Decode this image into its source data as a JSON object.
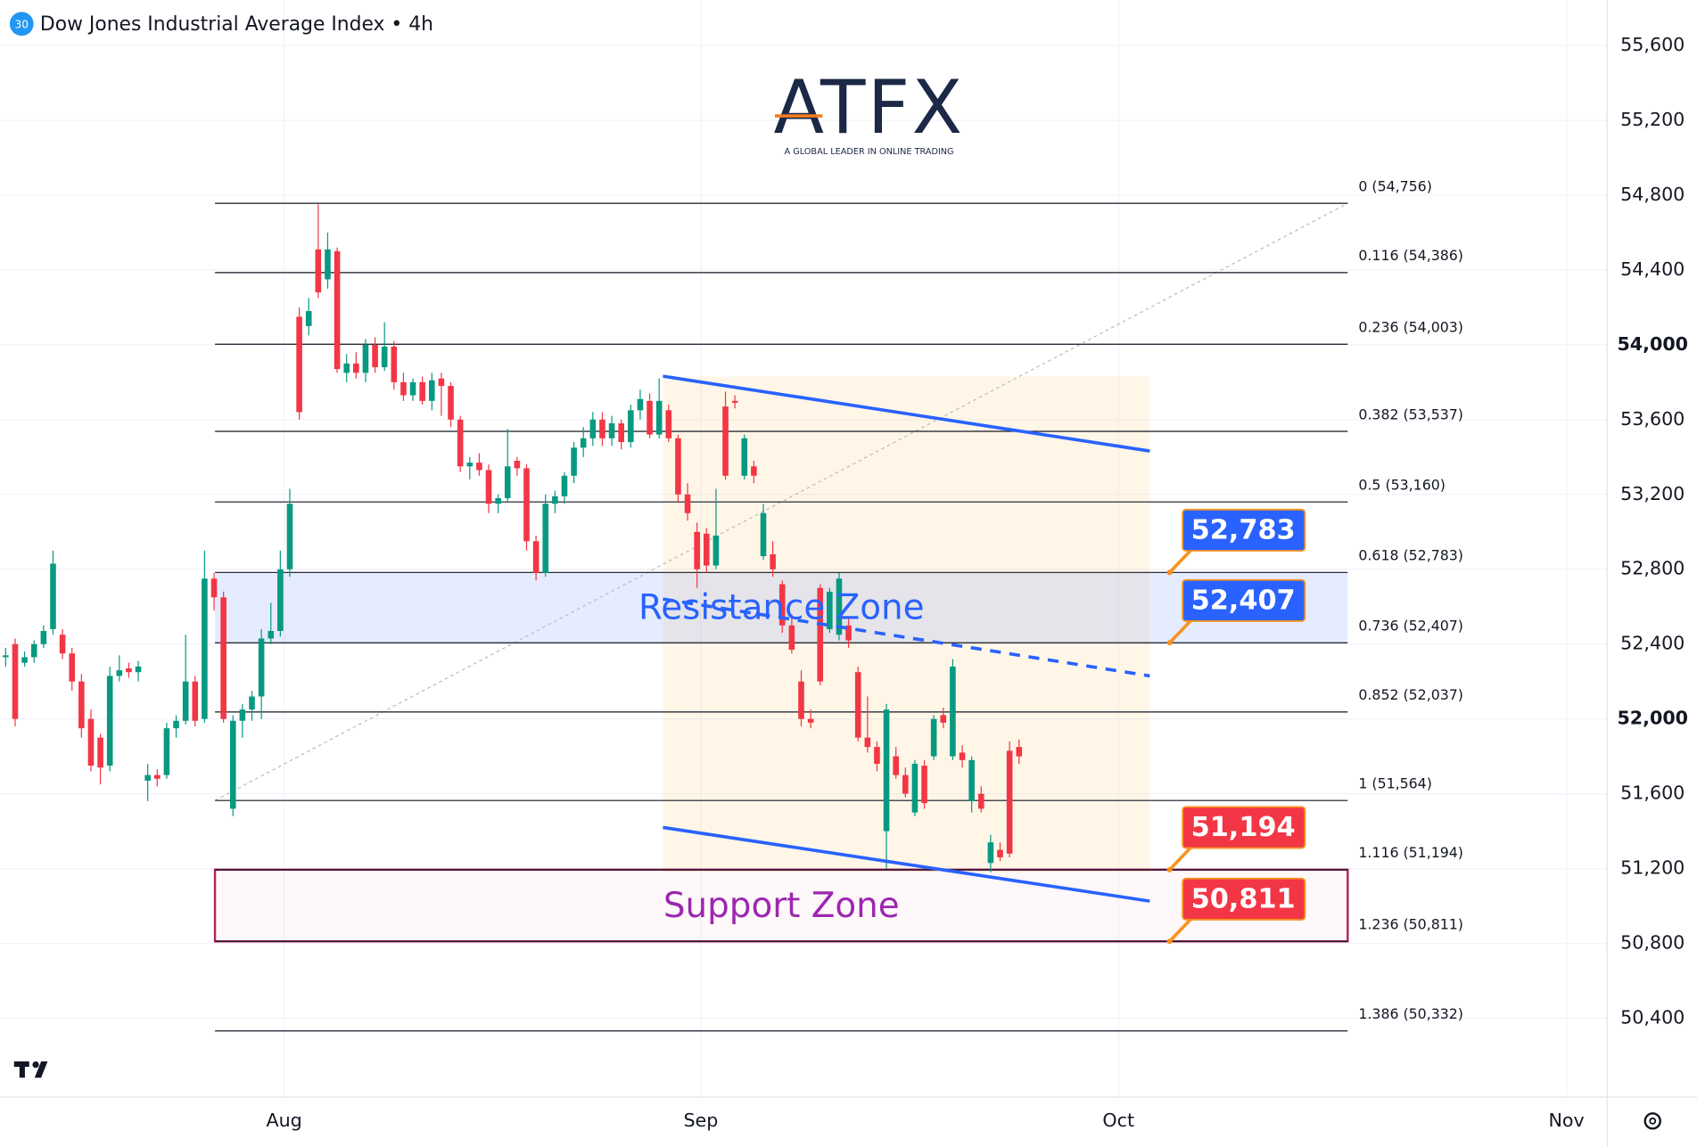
{
  "header": {
    "badge": "30",
    "title": "Dow Jones Industrial Average Index • 4h"
  },
  "logo": {
    "brand": "ATFX",
    "tagline": "A GLOBAL LEADER IN ONLINE TRADING"
  },
  "chart_data": {
    "type": "candlestick",
    "up_color": "#089981",
    "down_color": "#f23645",
    "ylim": [
      49978,
      55843
    ],
    "yticks": [
      {
        "value": 50400,
        "label": "50,400"
      },
      {
        "value": 50800,
        "label": "50,800"
      },
      {
        "value": 51200,
        "label": "51,200"
      },
      {
        "value": 51600,
        "label": "51,600"
      },
      {
        "value": 52000,
        "label": "52,000"
      },
      {
        "value": 52400,
        "label": "52,400"
      },
      {
        "value": 52800,
        "label": "52,800"
      },
      {
        "value": 53200,
        "label": "53,200"
      },
      {
        "value": 53600,
        "label": "53,600"
      },
      {
        "value": 54000,
        "label": "54,000"
      },
      {
        "value": 54400,
        "label": "54,400"
      },
      {
        "value": 54800,
        "label": "54,800"
      },
      {
        "value": 55200,
        "label": "55,200"
      },
      {
        "value": 55600,
        "label": "55,600"
      }
    ],
    "bold_yticks": [
      52000,
      54000
    ],
    "xlim": [
      -0.6,
      169.1
    ],
    "xticks": [
      {
        "value": 29.4,
        "label": "Aug"
      },
      {
        "value": 73.4,
        "label": "Sep"
      },
      {
        "value": 117.5,
        "label": "Oct"
      },
      {
        "value": 164.8,
        "label": "Nov"
      }
    ],
    "ohlc": [
      [
        52330,
        52380,
        52280,
        52340
      ],
      [
        52400,
        52430,
        51960,
        52000
      ],
      [
        52300,
        52360,
        52280,
        52330
      ],
      [
        52330,
        52420,
        52300,
        52400
      ],
      [
        52400,
        52500,
        52380,
        52470
      ],
      [
        52480,
        52900,
        52450,
        52830
      ],
      [
        52450,
        52480,
        52320,
        52350
      ],
      [
        52350,
        52380,
        52150,
        52200
      ],
      [
        52200,
        52240,
        51900,
        51950
      ],
      [
        52000,
        52050,
        51720,
        51750
      ],
      [
        51900,
        51920,
        51650,
        51740
      ],
      [
        51750,
        52280,
        51720,
        52230
      ],
      [
        52230,
        52340,
        52200,
        52260
      ],
      [
        52270,
        52300,
        52220,
        52250
      ],
      [
        52250,
        52310,
        52200,
        52280
      ],
      [
        51670,
        51760,
        51560,
        51700
      ],
      [
        51700,
        51730,
        51640,
        51680
      ],
      [
        51700,
        51980,
        51680,
        51950
      ],
      [
        51950,
        52020,
        51900,
        51990
      ],
      [
        51990,
        52450,
        51970,
        52200
      ],
      [
        52200,
        52230,
        51960,
        51990
      ],
      [
        52000,
        52900,
        51980,
        52750
      ],
      [
        52750,
        52780,
        52580,
        52650
      ],
      [
        52650,
        52680,
        51980,
        52000
      ],
      [
        51520,
        52020,
        51480,
        51990
      ],
      [
        51990,
        52080,
        51900,
        52050
      ],
      [
        52050,
        52150,
        51990,
        52120
      ],
      [
        52120,
        52480,
        52000,
        52430
      ],
      [
        52430,
        52620,
        52400,
        52470
      ],
      [
        52470,
        52900,
        52440,
        52800
      ],
      [
        52800,
        53230,
        52760,
        53150
      ],
      [
        54150,
        54200,
        53600,
        53640
      ],
      [
        54100,
        54250,
        54050,
        54180
      ],
      [
        54510,
        54750,
        54250,
        54280
      ],
      [
        54350,
        54600,
        54300,
        54510
      ],
      [
        54500,
        54520,
        53850,
        53870
      ],
      [
        53850,
        53950,
        53800,
        53900
      ],
      [
        53900,
        53960,
        53820,
        53850
      ],
      [
        53850,
        54030,
        53800,
        54000
      ],
      [
        54000,
        54040,
        53850,
        53880
      ],
      [
        53880,
        54120,
        53860,
        53990
      ],
      [
        53990,
        54020,
        53760,
        53800
      ],
      [
        53800,
        53850,
        53700,
        53730
      ],
      [
        53730,
        53820,
        53700,
        53800
      ],
      [
        53800,
        53830,
        53680,
        53700
      ],
      [
        53700,
        53850,
        53650,
        53810
      ],
      [
        53820,
        53850,
        53620,
        53780
      ],
      [
        53780,
        53800,
        53560,
        53600
      ],
      [
        53600,
        53620,
        53320,
        53350
      ],
      [
        53350,
        53400,
        53280,
        53370
      ],
      [
        53370,
        53420,
        53300,
        53330
      ],
      [
        53330,
        53360,
        53100,
        53150
      ],
      [
        53150,
        53200,
        53100,
        53180
      ],
      [
        53180,
        53550,
        53160,
        53350
      ],
      [
        53380,
        53400,
        53300,
        53340
      ],
      [
        53340,
        53360,
        52900,
        52950
      ],
      [
        52950,
        52980,
        52740,
        52780
      ],
      [
        52780,
        53200,
        52760,
        53150
      ],
      [
        53150,
        53220,
        53100,
        53190
      ],
      [
        53190,
        53320,
        53150,
        53300
      ],
      [
        53300,
        53480,
        53260,
        53450
      ],
      [
        53450,
        53560,
        53400,
        53500
      ],
      [
        53500,
        53640,
        53460,
        53600
      ],
      [
        53600,
        53640,
        53460,
        53500
      ],
      [
        53500,
        53620,
        53460,
        53580
      ],
      [
        53580,
        53600,
        53440,
        53480
      ],
      [
        53480,
        53680,
        53450,
        53650
      ],
      [
        53650,
        53760,
        53600,
        53710
      ],
      [
        53700,
        53740,
        53500,
        53520
      ],
      [
        53520,
        53820,
        53500,
        53700
      ],
      [
        53650,
        53680,
        53480,
        53500
      ],
      [
        53500,
        53520,
        53160,
        53200
      ],
      [
        53200,
        53260,
        53060,
        53100
      ],
      [
        53000,
        53050,
        52700,
        52800
      ],
      [
        52990,
        53020,
        52780,
        52820
      ],
      [
        52820,
        53230,
        52800,
        52980
      ],
      [
        53670,
        53750,
        53280,
        53300
      ],
      [
        53700,
        53730,
        53660,
        53690
      ],
      [
        53300,
        53520,
        53280,
        53500
      ],
      [
        53350,
        53380,
        53260,
        53300
      ],
      [
        52870,
        53150,
        52850,
        53100
      ],
      [
        52880,
        52950,
        52760,
        52800
      ],
      [
        52720,
        52740,
        52460,
        52500
      ],
      [
        52500,
        52560,
        52350,
        52370
      ],
      [
        52200,
        52260,
        51960,
        52000
      ],
      [
        52000,
        52050,
        51950,
        51980
      ],
      [
        52700,
        52720,
        52180,
        52200
      ],
      [
        52480,
        52700,
        52460,
        52680
      ],
      [
        52450,
        52780,
        52420,
        52750
      ],
      [
        52500,
        52540,
        52380,
        52420
      ],
      [
        52250,
        52280,
        51880,
        51900
      ],
      [
        51900,
        52120,
        51820,
        51850
      ],
      [
        51850,
        51880,
        51720,
        51760
      ],
      [
        51400,
        52080,
        51200,
        52050
      ],
      [
        51800,
        51850,
        51680,
        51700
      ],
      [
        51700,
        51740,
        51580,
        51600
      ],
      [
        51500,
        51780,
        51480,
        51760
      ],
      [
        51750,
        51780,
        51520,
        51550
      ],
      [
        51800,
        52020,
        51780,
        52000
      ],
      [
        52020,
        52060,
        51950,
        51980
      ],
      [
        51800,
        52320,
        51780,
        52280
      ],
      [
        51820,
        51860,
        51740,
        51780
      ],
      [
        51560,
        51800,
        51500,
        51780
      ],
      [
        51600,
        51640,
        51500,
        51520
      ],
      [
        51230,
        51380,
        51180,
        51340
      ],
      [
        51300,
        51340,
        51240,
        51260
      ],
      [
        51830,
        51880,
        51260,
        51280
      ],
      [
        51850,
        51890,
        51760,
        51800
      ]
    ],
    "fib_range": [
      22.1,
      141.7
    ],
    "fib_trend": {
      "from": 51564,
      "to": 54756
    },
    "fib_levels": [
      {
        "value": 54756,
        "label": "0 (54,756)"
      },
      {
        "value": 54386,
        "label": "0.116 (54,386)"
      },
      {
        "value": 54003,
        "label": "0.236 (54,003)"
      },
      {
        "value": 53537,
        "label": "0.382 (53,537)"
      },
      {
        "value": 53160,
        "label": "0.5 (53,160)"
      },
      {
        "value": 52783,
        "label": "0.618 (52,783)"
      },
      {
        "value": 52407,
        "label": "0.736 (52,407)"
      },
      {
        "value": 52037,
        "label": "0.852 (52,037)"
      },
      {
        "value": 51564,
        "label": "1 (51,564)"
      },
      {
        "value": 51194,
        "label": "1.116 (51,194)"
      },
      {
        "value": 50811,
        "label": "1.236 (50,811)"
      },
      {
        "value": 50332,
        "label": "1.386 (50,332)"
      }
    ],
    "zones": [
      {
        "name": "Resistance Zone",
        "range": [
          52407,
          52783
        ],
        "color": "#2962ff"
      },
      {
        "name": "Support Zone",
        "range": [
          50811,
          51194
        ],
        "color": "#9c27b0"
      }
    ],
    "channel": {
      "start": 69.4,
      "end": 120.8,
      "upper": [
        53832,
        53432
      ],
      "mid": [
        52641,
        52230
      ],
      "lower": [
        51420,
        51026
      ],
      "box_range": [
        51180,
        53830
      ]
    },
    "price_tags": [
      {
        "value": 52783,
        "label": "52,783",
        "color": "#2962ff"
      },
      {
        "value": 52407,
        "label": "52,407",
        "color": "#2962ff"
      },
      {
        "value": 51194,
        "label": "51,194",
        "color": "#f23645"
      },
      {
        "value": 50811,
        "label": "50,811",
        "color": "#f23645"
      }
    ],
    "tag_anchor": 122.9
  }
}
